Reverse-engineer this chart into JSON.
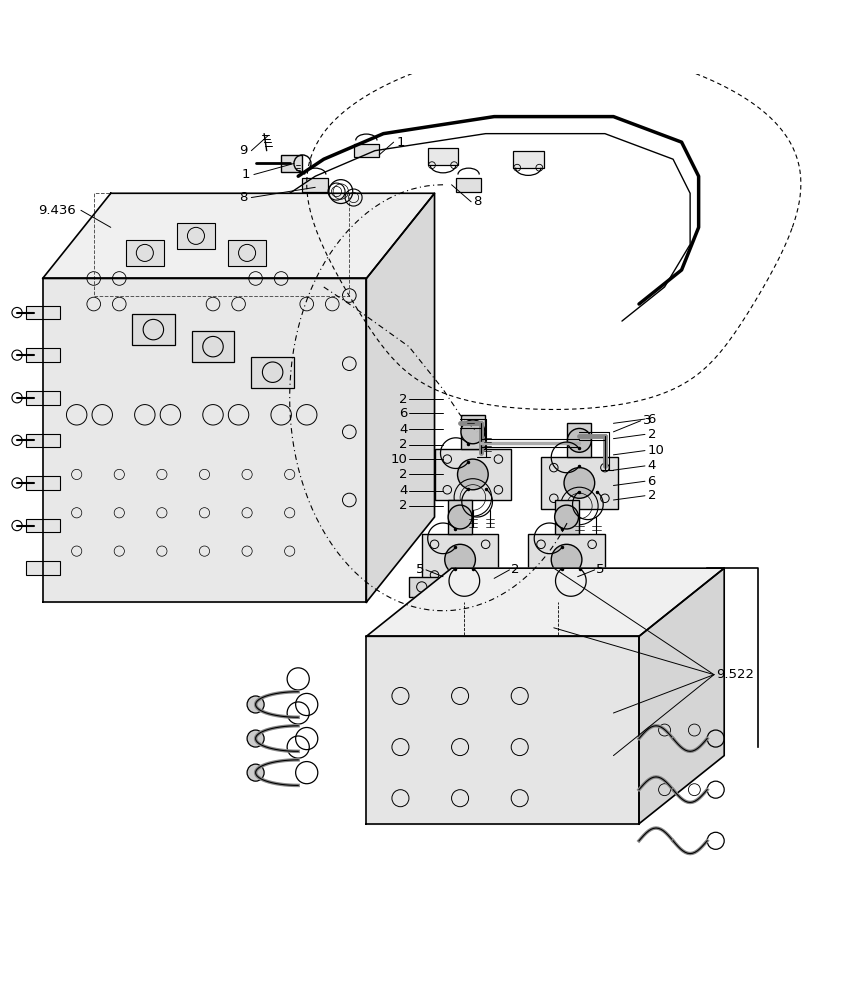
{
  "title": "",
  "background_color": "#ffffff",
  "line_color": "#000000",
  "fig_width": 8.52,
  "fig_height": 10.0,
  "dpi": 100
}
